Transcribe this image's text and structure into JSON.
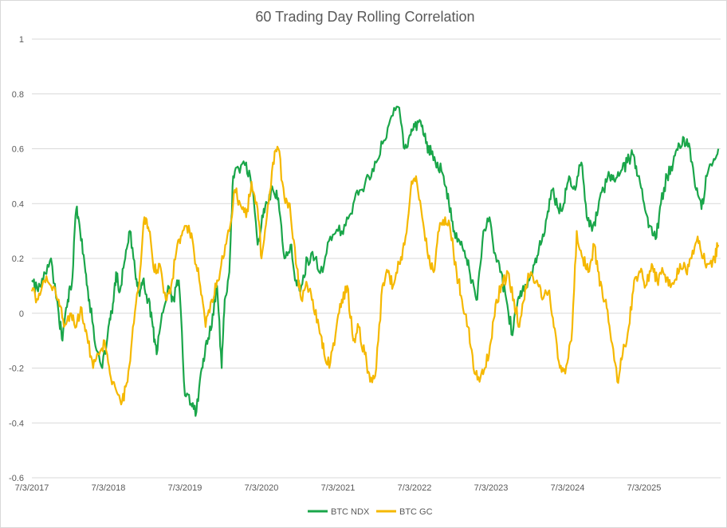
{
  "chart_data": {
    "type": "line",
    "title": "60 Trading Day Rolling Correlation",
    "xlabel": "",
    "ylabel": "",
    "ylim": [
      -0.6,
      1
    ],
    "yticks": [
      -0.6,
      -0.4,
      -0.2,
      0,
      0.2,
      0.4,
      0.6,
      0.8,
      1
    ],
    "ytick_labels": [
      "-0.6",
      "-0.4",
      "-0.2",
      "0",
      "0.2",
      "0.4",
      "0.6",
      "0.8",
      "1"
    ],
    "xlim": [
      2017.5,
      2026.5
    ],
    "xtick_labels": [
      "7/3/2017",
      "7/3/2018",
      "7/3/2019",
      "7/3/2020",
      "7/3/2021",
      "7/3/2022",
      "7/3/2023",
      "7/3/2024",
      "7/3/2025"
    ],
    "xtick_positions": [
      2017.5,
      2018.5,
      2019.5,
      2020.5,
      2021.5,
      2022.5,
      2023.5,
      2024.5,
      2025.5
    ],
    "grid": true,
    "legend": "bottom-center",
    "series": [
      {
        "name": "BTC NDX",
        "color": "#1aa64a",
        "x": [
          2017.5,
          2017.58,
          2017.66,
          2017.75,
          2017.85,
          2017.9,
          2017.97,
          2018.02,
          2018.08,
          2018.13,
          2018.2,
          2018.25,
          2018.33,
          2018.42,
          2018.5,
          2018.55,
          2018.6,
          2018.65,
          2018.72,
          2018.78,
          2018.85,
          2018.9,
          2018.95,
          2019.02,
          2019.08,
          2019.13,
          2019.2,
          2019.28,
          2019.35,
          2019.42,
          2019.5,
          2019.58,
          2019.65,
          2019.72,
          2019.78,
          2019.85,
          2019.92,
          2019.98,
          2020.02,
          2020.08,
          2020.13,
          2020.2,
          2020.3,
          2020.38,
          2020.45,
          2020.52,
          2020.58,
          2020.65,
          2020.72,
          2020.8,
          2020.88,
          2020.95,
          2021.02,
          2021.1,
          2021.2,
          2021.3,
          2021.4,
          2021.5,
          2021.6,
          2021.7,
          2021.8,
          2021.9,
          2022.0,
          2022.1,
          2022.2,
          2022.3,
          2022.37,
          2022.45,
          2022.5,
          2022.58,
          2022.65,
          2022.72,
          2022.8,
          2022.88,
          2022.95,
          2023.02,
          2023.1,
          2023.18,
          2023.25,
          2023.32,
          2023.4,
          2023.48,
          2023.55,
          2023.62,
          2023.7,
          2023.78,
          2023.85,
          2023.92,
          2024.0,
          2024.08,
          2024.15,
          2024.23,
          2024.3,
          2024.38,
          2024.45,
          2024.52,
          2024.6,
          2024.68,
          2024.75,
          2024.82,
          2024.9,
          2024.97,
          2025.05,
          2025.12,
          2025.2,
          2025.28,
          2025.35,
          2025.42,
          2025.5,
          2025.57,
          2025.65,
          2025.72,
          2025.8,
          2025.88,
          2025.95,
          2026.02,
          2026.1,
          2026.18,
          2026.25,
          2026.32,
          2026.4,
          2026.47
        ],
        "values": [
          0.12,
          0.08,
          0.15,
          0.2,
          0.0,
          -0.1,
          0.05,
          0.1,
          0.38,
          0.3,
          0.15,
          0.05,
          -0.12,
          -0.2,
          -0.05,
          0.0,
          0.15,
          0.08,
          0.2,
          0.3,
          0.15,
          0.08,
          0.12,
          0.05,
          -0.05,
          -0.15,
          0.0,
          0.1,
          0.05,
          0.12,
          -0.3,
          -0.33,
          -0.36,
          -0.2,
          -0.1,
          -0.05,
          0.1,
          -0.2,
          0.05,
          0.15,
          0.5,
          0.53,
          0.55,
          0.45,
          0.25,
          0.35,
          0.4,
          0.45,
          0.42,
          0.2,
          0.25,
          0.12,
          0.1,
          0.2,
          0.2,
          0.15,
          0.28,
          0.3,
          0.32,
          0.4,
          0.45,
          0.5,
          0.55,
          0.63,
          0.72,
          0.75,
          0.6,
          0.65,
          0.68,
          0.7,
          0.62,
          0.58,
          0.55,
          0.5,
          0.4,
          0.3,
          0.25,
          0.2,
          0.12,
          0.05,
          0.3,
          0.35,
          0.22,
          0.15,
          0.05,
          -0.08,
          0.05,
          0.1,
          0.12,
          0.2,
          0.25,
          0.35,
          0.45,
          0.38,
          0.4,
          0.5,
          0.45,
          0.55,
          0.35,
          0.3,
          0.38,
          0.45,
          0.5,
          0.48,
          0.52,
          0.55,
          0.58,
          0.5,
          0.4,
          0.32,
          0.27,
          0.4,
          0.5,
          0.55,
          0.62,
          0.64,
          0.6,
          0.45,
          0.38,
          0.5,
          0.55,
          0.6
        ]
      },
      {
        "name": "BTC GC",
        "color": "#f5b800",
        "x": [
          2017.5,
          2017.58,
          2017.66,
          2017.75,
          2017.85,
          2017.92,
          2018.0,
          2018.08,
          2018.15,
          2018.22,
          2018.3,
          2018.38,
          2018.45,
          2018.52,
          2018.6,
          2018.68,
          2018.75,
          2018.82,
          2018.9,
          2018.97,
          2019.03,
          2019.1,
          2019.17,
          2019.25,
          2019.32,
          2019.4,
          2019.47,
          2019.55,
          2019.62,
          2019.7,
          2019.77,
          2019.85,
          2019.92,
          2020.0,
          2020.08,
          2020.15,
          2020.22,
          2020.3,
          2020.37,
          2020.45,
          2020.5,
          2020.57,
          2020.65,
          2020.72,
          2020.8,
          2020.87,
          2020.95,
          2021.02,
          2021.1,
          2021.17,
          2021.25,
          2021.32,
          2021.4,
          2021.48,
          2021.55,
          2021.62,
          2021.7,
          2021.77,
          2021.85,
          2021.92,
          2022.0,
          2022.08,
          2022.15,
          2022.22,
          2022.3,
          2022.37,
          2022.45,
          2022.52,
          2022.6,
          2022.68,
          2022.75,
          2022.82,
          2022.9,
          2022.97,
          2023.05,
          2023.12,
          2023.2,
          2023.27,
          2023.35,
          2023.42,
          2023.5,
          2023.57,
          2023.65,
          2023.72,
          2023.8,
          2023.87,
          2023.95,
          2024.02,
          2024.1,
          2024.17,
          2024.25,
          2024.32,
          2024.4,
          2024.47,
          2024.55,
          2024.62,
          2024.7,
          2024.77,
          2024.85,
          2024.92,
          2025.0,
          2025.07,
          2025.15,
          2025.22,
          2025.3,
          2025.37,
          2025.45,
          2025.52,
          2025.6,
          2025.67,
          2025.75,
          2025.82,
          2025.9,
          2025.97,
          2026.05,
          2026.12,
          2026.2,
          2026.27,
          2026.35,
          2026.42,
          2026.47
        ],
        "values": [
          0.08,
          0.05,
          0.12,
          0.1,
          0.05,
          -0.05,
          0.0,
          -0.05,
          0.02,
          -0.08,
          -0.2,
          -0.15,
          -0.1,
          -0.22,
          -0.28,
          -0.32,
          -0.25,
          -0.05,
          0.1,
          0.35,
          0.3,
          0.15,
          0.18,
          0.05,
          0.1,
          0.25,
          0.3,
          0.32,
          0.22,
          0.1,
          -0.05,
          0.05,
          0.12,
          0.2,
          0.3,
          0.45,
          0.4,
          0.35,
          0.48,
          0.38,
          0.2,
          0.35,
          0.55,
          0.6,
          0.42,
          0.4,
          0.18,
          0.05,
          0.1,
          0.05,
          -0.05,
          -0.15,
          -0.18,
          -0.05,
          0.05,
          0.1,
          -0.1,
          -0.05,
          -0.15,
          -0.25,
          -0.2,
          0.1,
          0.15,
          0.1,
          0.18,
          0.25,
          0.45,
          0.5,
          0.35,
          0.2,
          0.15,
          0.3,
          0.35,
          0.3,
          0.15,
          0.05,
          -0.05,
          -0.2,
          -0.25,
          -0.2,
          -0.1,
          0.05,
          0.1,
          0.15,
          0.05,
          -0.05,
          0.1,
          0.15,
          0.12,
          0.05,
          0.08,
          -0.05,
          -0.2,
          -0.22,
          -0.1,
          0.3,
          0.2,
          0.15,
          0.25,
          0.1,
          0.05,
          -0.1,
          -0.25,
          -0.15,
          -0.05,
          0.12,
          0.15,
          0.1,
          0.18,
          0.12,
          0.15,
          0.1,
          0.12,
          0.18,
          0.15,
          0.2,
          0.28,
          0.2,
          0.18,
          0.2,
          0.25
        ]
      }
    ]
  }
}
